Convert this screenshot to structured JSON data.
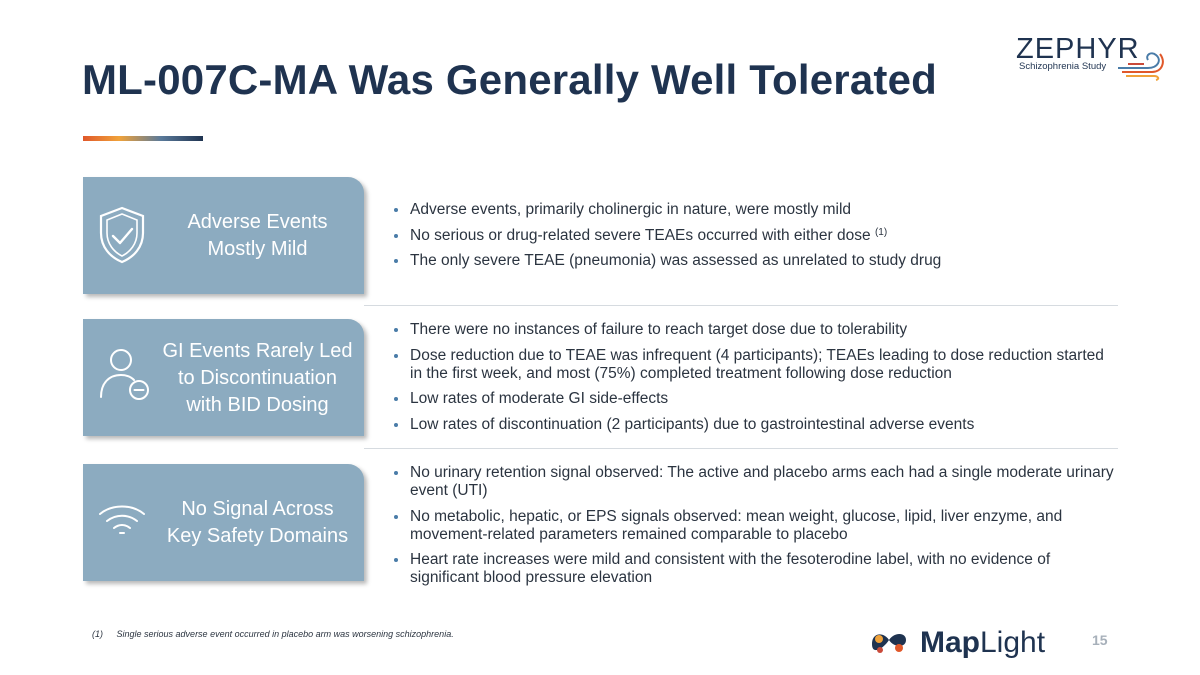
{
  "slide": {
    "title": "ML-007C-MA Was Generally Well Tolerated",
    "page_number": "15"
  },
  "logo": {
    "word": "ZEPHYR",
    "subtitle": "Schizophrenia Study"
  },
  "sections": [
    {
      "icon": "shield-check-icon",
      "label_lines": [
        "Adverse Events",
        "Mostly Mild"
      ],
      "bullets": [
        {
          "text": "Adverse events, primarily cholinergic in nature, were mostly mild"
        },
        {
          "text": "No serious or drug-related severe TEAEs occurred with either dose",
          "sup": "(1)"
        },
        {
          "text": "The only severe TEAE (pneumonia) was assessed as unrelated to study drug"
        }
      ]
    },
    {
      "icon": "person-minus-icon",
      "label_lines": [
        "GI Events Rarely Led",
        "to Discontinuation",
        "with BID Dosing"
      ],
      "bullets": [
        {
          "text": "There were no instances of failure to reach target dose due to tolerability"
        },
        {
          "text": "Dose reduction due to TEAE was infrequent (4 participants); TEAEs leading to dose reduction started in the first week, and most (75%) completed treatment following dose reduction"
        },
        {
          "text": "Low rates of moderate GI side-effects"
        },
        {
          "text": "Low rates of discontinuation (2 participants) due to gastrointestinal adverse events"
        }
      ]
    },
    {
      "icon": "signal-waves-icon",
      "label_lines": [
        "No Signal Across",
        "Key Safety Domains"
      ],
      "bullets": [
        {
          "text": "No urinary retention signal observed: The active and placebo arms each had a single moderate urinary event (UTI)"
        },
        {
          "text": "No metabolic, hepatic, or EPS signals observed: mean weight, glucose, lipid, liver enzyme, and movement-related parameters remained comparable to placebo"
        },
        {
          "text": "Heart rate increases were mild and consistent with the fesoterodine label, with no evidence of significant blood pressure elevation"
        }
      ]
    }
  ],
  "footnote": {
    "number": "(1)",
    "text": "Single serious adverse event occurred in placebo arm was worsening schizophrenia."
  },
  "brand": {
    "word_bold": "Map",
    "word_light": "Light"
  },
  "colors": {
    "title": "#1f3350",
    "card": "#8cabc0",
    "bullet_dot": "#4a7ca8",
    "accent_orange": "#e0582a"
  }
}
